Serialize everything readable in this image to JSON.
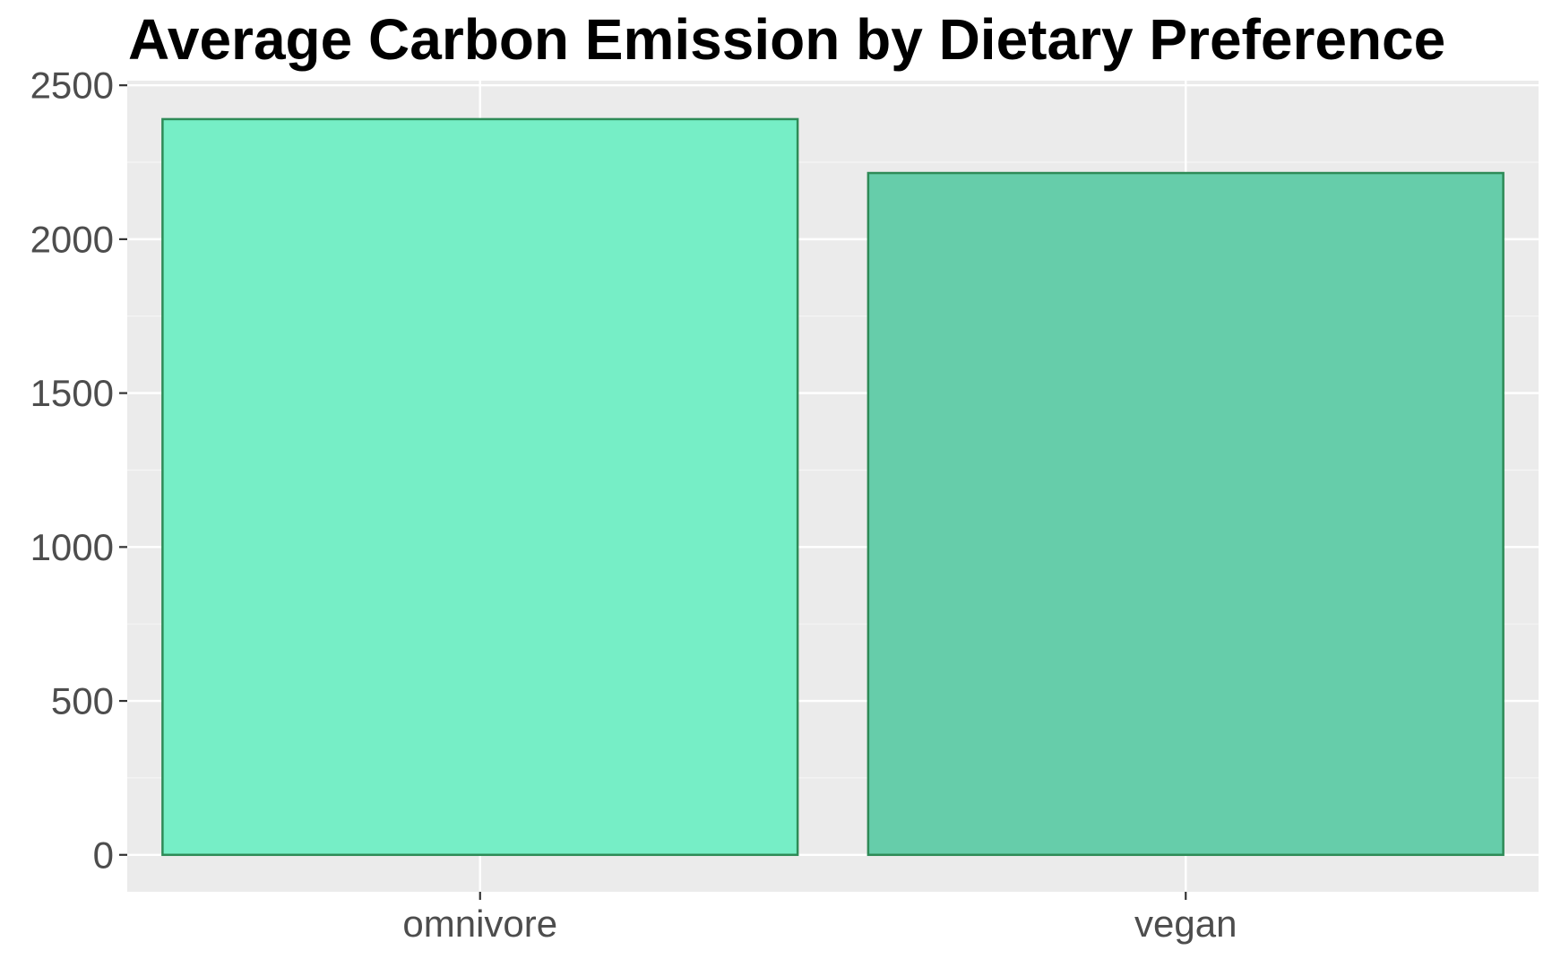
{
  "chart_data": {
    "type": "bar",
    "title": "Average Carbon Emission by Dietary Preference",
    "xlabel": "",
    "ylabel": "",
    "categories": [
      "omnivore",
      "vegan"
    ],
    "values": [
      2390,
      2215
    ],
    "ylim": [
      -120,
      2515
    ],
    "yticks": [
      "0",
      "500",
      "1000",
      "1500",
      "2000",
      "2500"
    ],
    "ytick_values": [
      0,
      500,
      1000,
      1500,
      2000,
      2500
    ],
    "grid": true,
    "legend": "none",
    "colors": {
      "panel_background": "#ebebeb",
      "grid_major": "#ffffff",
      "grid_minor": "#f5f5f5",
      "bar_outline": "#2e8b57",
      "bar_fills": [
        "#76eec6",
        "#66cdaa"
      ],
      "tick_color": "#333333"
    }
  }
}
